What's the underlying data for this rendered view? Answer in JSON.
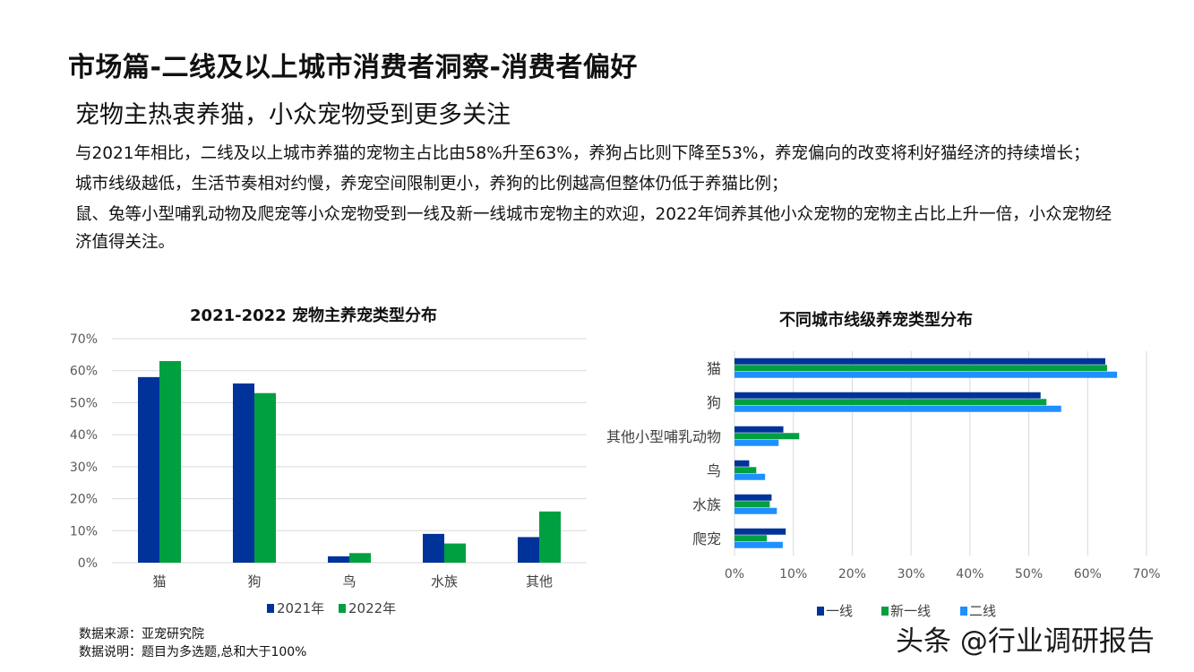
{
  "page": {
    "title": "市场篇-二线及以上城市消费者洞察-消费者偏好",
    "subtitle": "宠物主热衷养猫，小众宠物受到更多关注",
    "paragraphs": [
      "与2021年相比，二线及以上城市养猫的宠物主占比由58%升至63%，养狗占比则下降至53%，养宠偏向的改变将利好猫经济的持续增长；",
      "城市线级越低，生活节奏相对约慢，养宠空间限制更小，养狗的比例越高但整体仍低于养猫比例；",
      "鼠、兔等小型哺乳动物及爬宠等小众宠物受到一线及新一线城市宠物主的欢迎，2022年饲养其他小众宠物的宠物主占比上升一倍，小众宠物经济值得关注。"
    ],
    "source_note": "数据来源：亚宠研究院",
    "data_note": "数据说明：题目为多选题,总和大于100%",
    "watermark": "头条 @行业调研报告"
  },
  "chart_data": [
    {
      "type": "bar",
      "title": "2021-2022 宠物主养宠类型分布",
      "categories": [
        "猫",
        "狗",
        "鸟",
        "水族",
        "其他"
      ],
      "series": [
        {
          "name": "2021年",
          "values": [
            58,
            56,
            2,
            9,
            8
          ],
          "color": "#003399"
        },
        {
          "name": "2022年",
          "values": [
            63,
            53,
            3,
            6,
            16
          ],
          "color": "#00a040"
        }
      ],
      "ylim": [
        0,
        70
      ],
      "yticks": [
        0,
        10,
        20,
        30,
        40,
        50,
        60,
        70
      ],
      "ytick_labels": [
        "0%",
        "10%",
        "20%",
        "30%",
        "40%",
        "50%",
        "60%",
        "70%"
      ],
      "grid": true,
      "legend": "bottom"
    },
    {
      "type": "bar",
      "orientation": "horizontal",
      "title": "不同城市线级养宠类型分布",
      "categories": [
        "猫",
        "狗",
        "其他小型哺乳动物",
        "鸟",
        "水族",
        "爬宠"
      ],
      "series": [
        {
          "name": "一线",
          "values": [
            63,
            52,
            8.3,
            2.5,
            6.3,
            8.7
          ],
          "color": "#003399"
        },
        {
          "name": "新一线",
          "values": [
            63.3,
            53,
            11,
            3.7,
            6,
            5.5
          ],
          "color": "#00a040"
        },
        {
          "name": "二线",
          "values": [
            65,
            55.5,
            7.5,
            5.2,
            7.2,
            8.2
          ],
          "color": "#1e90ff"
        }
      ],
      "xlim": [
        0,
        70
      ],
      "xticks": [
        0,
        10,
        20,
        30,
        40,
        50,
        60,
        70
      ],
      "xtick_labels": [
        "0%",
        "10%",
        "20%",
        "30%",
        "40%",
        "50%",
        "60%",
        "70%"
      ],
      "grid": true,
      "legend": "bottom"
    }
  ]
}
